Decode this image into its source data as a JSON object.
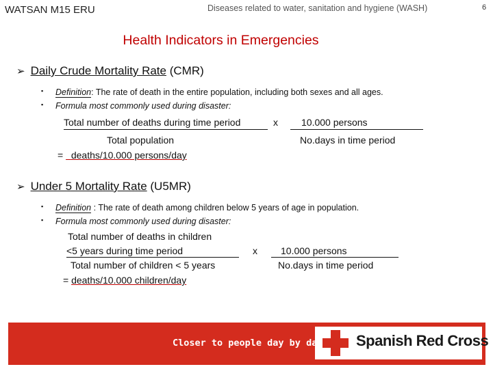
{
  "header": {
    "course": "WATSAN M15 ERU",
    "topic": "Diseases related to water, sanitation and hygiene (WASH)",
    "page_number": "6"
  },
  "title": "Health Indicators in Emergencies",
  "cmr": {
    "heading_main": "Daily Crude Mortality Rate",
    "heading_abbr": "(CMR)",
    "definition_label": "Definition",
    "definition_text": ": The rate of death in the entire population, including both sexes and all ages.",
    "formula_intro": "Formula most commonly used during disaster:",
    "numerator": "Total number of deaths during time period",
    "times": "x",
    "multiplier_top": "10.000 persons",
    "denominator": "Total population",
    "multiplier_bottom": "No.days in time period",
    "result_eq": "=",
    "result": "deaths/10.000 persons/day"
  },
  "u5mr": {
    "heading_main": "Under 5 Mortality Rate",
    "heading_abbr": "(U5MR)",
    "definition_label": "Definition",
    "definition_text": " : The rate of death among children below 5 years of age in population.",
    "formula_intro": "Formula most commonly used during disaster:",
    "numerator_line1": "Total number of deaths in children",
    "numerator_line2": "<5 years during time period",
    "times": "x",
    "multiplier_top": "10.000 persons",
    "denominator": "Total number of children < 5 years",
    "multiplier_bottom": "No.days in time period",
    "result_eq": "=",
    "result": "deaths/10.000 children/day"
  },
  "footer": {
    "slogan": "Closer to people day by day",
    "organization": "Spanish Red Cross",
    "banner_color": "#d42c1e",
    "cross_color": "#d42c1e"
  }
}
